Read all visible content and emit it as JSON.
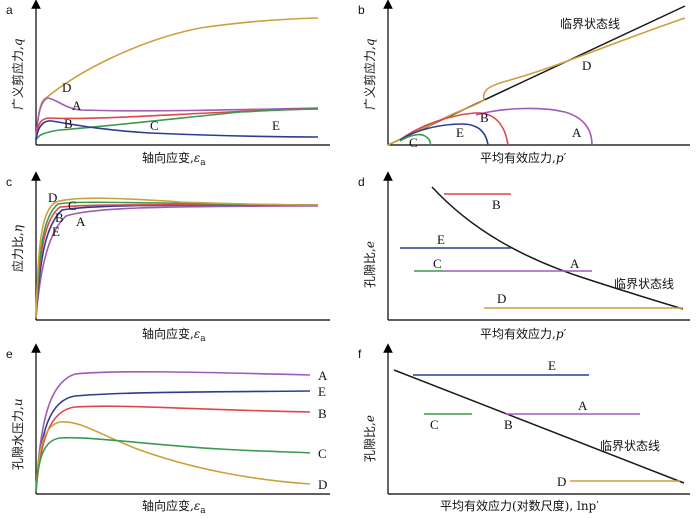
{
  "colors": {
    "A": "#a05bb8",
    "B": "#e0454a",
    "C": "#3c9a4f",
    "D": "#c9a23c",
    "E": "#2d3e91",
    "black": "#1a1a1a"
  },
  "panels": {
    "a": {
      "label": "a",
      "ylabel": "广义剪应力,",
      "ysym": "q",
      "xlabel": "轴向应变,",
      "xsym": "ε",
      "xsub": "a",
      "curve_labels": [
        "A",
        "B",
        "C",
        "D",
        "E"
      ]
    },
    "b": {
      "label": "b",
      "ylabel": "广义剪应力,",
      "ysym": "q",
      "xlabel": "平均有效应力,",
      "xsym": "p′",
      "line_label": "临界状态线",
      "curve_labels": [
        "A",
        "B",
        "C",
        "D",
        "E"
      ]
    },
    "c": {
      "label": "c",
      "ylabel": "应力比,",
      "ysym": "η",
      "xlabel": "轴向应变,",
      "xsym": "ε",
      "xsub": "a",
      "curve_labels": [
        "A",
        "B",
        "C",
        "D",
        "E"
      ]
    },
    "d": {
      "label": "d",
      "ylabel": "孔隙比,",
      "ysym": "e",
      "xlabel": "平均有效应力,",
      "xsym": "p′",
      "line_label": "临界状态线",
      "curve_labels": [
        "A",
        "B",
        "C",
        "D",
        "E"
      ]
    },
    "e": {
      "label": "e",
      "ylabel": "孔隙水压力,",
      "ysym": "u",
      "xlabel": "轴向应变,",
      "xsym": "ε",
      "xsub": "a",
      "curve_labels": [
        "A",
        "B",
        "C",
        "D",
        "E"
      ]
    },
    "f": {
      "label": "f",
      "ylabel": "孔隙比,",
      "ysym": "e",
      "xlabel": "平均有效应力(对数尺度), lnp′",
      "line_label": "临界状态线",
      "curve_labels": [
        "A",
        "B",
        "C",
        "D",
        "E"
      ]
    }
  }
}
